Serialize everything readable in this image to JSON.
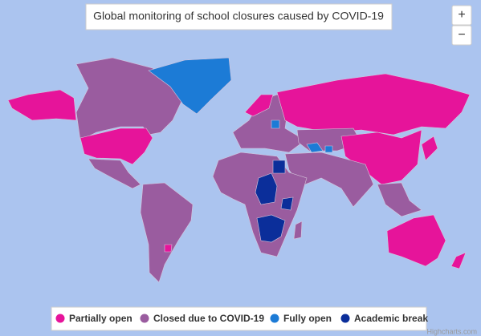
{
  "map": {
    "title": "Global monitoring of school closures caused by COVID-19",
    "zoom": [
      "+",
      "−"
    ],
    "legend": [
      {
        "name": "Partially open",
        "color": "#e6149a"
      },
      {
        "name": "Closed due to COVID-19",
        "color": "#9a5c9f"
      },
      {
        "name": "Fully open",
        "color": "#1c7bd6"
      },
      {
        "name": "Academic break",
        "color": "#0b2e9a"
      }
    ],
    "credit": "Highcharts.com"
  }
}
